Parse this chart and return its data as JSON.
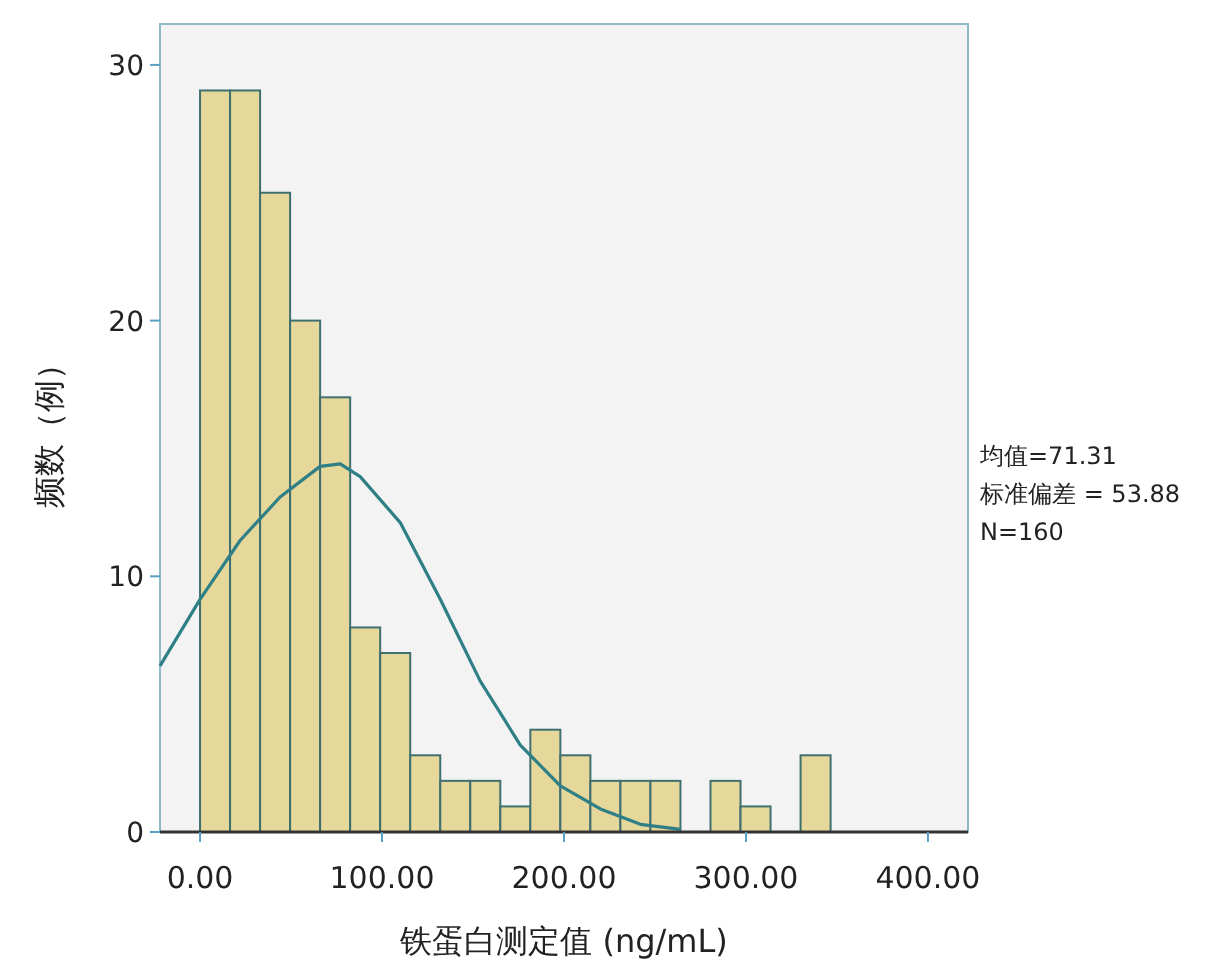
{
  "chart_data": {
    "type": "histogram",
    "xlabel": "铁蛋白测定值 (ng/mL)",
    "ylabel": "频数（例）",
    "bins": [
      0,
      16.5,
      33,
      49.5,
      66,
      82.5,
      99,
      115.5,
      132,
      148.5,
      165,
      181.5,
      198,
      214.5,
      231,
      247.5,
      264,
      280.5,
      297,
      313.5,
      330,
      346.5
    ],
    "values": [
      29,
      29,
      25,
      20,
      17,
      8,
      7,
      3,
      2,
      2,
      1,
      4,
      3,
      2,
      2,
      2,
      0,
      2,
      1,
      0,
      3
    ],
    "color": "#e6d89a",
    "series": [
      {
        "type": "line",
        "color": "#2f7f86",
        "x": [
          -22,
          0,
          22,
          44,
          66,
          77,
          88,
          110,
          132,
          154,
          176,
          198,
          220,
          242,
          264
        ],
        "values": [
          6.5,
          9.1,
          11.4,
          13.1,
          14.3,
          14.4,
          13.9,
          12.1,
          9.1,
          5.9,
          3.4,
          1.8,
          0.9,
          0.3,
          0.1
        ]
      }
    ],
    "xlim": [
      -22,
      422
    ],
    "ylim": [
      0,
      31.6
    ],
    "xticks": [
      {
        "value": 0,
        "label": "0.00"
      },
      {
        "value": 100,
        "label": "100.00"
      },
      {
        "value": 200,
        "label": "200.00"
      },
      {
        "value": 300,
        "label": "300.00"
      },
      {
        "value": 400,
        "label": "400.00"
      }
    ],
    "yticks": [
      0,
      10,
      20,
      30
    ],
    "annotations": [
      "均值=71.31",
      "标准偏差 = 53.88",
      "N=160"
    ]
  }
}
